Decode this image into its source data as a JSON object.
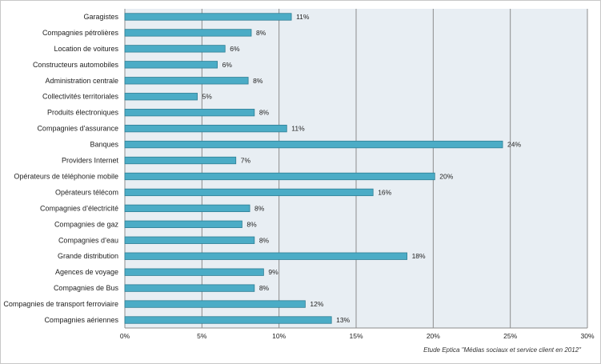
{
  "chart_data": {
    "type": "bar",
    "orientation": "horizontal",
    "categories": [
      "Garagistes",
      "Compagnies pétrolières",
      "Location de voitures",
      "Constructeurs automobiles",
      "Administration centrale",
      "Collectivités territoriales",
      "Produits électroniques",
      "Compagnies d’assurance",
      "Banques",
      "Providers Internet",
      "Opérateurs de téléphonie mobile",
      "Opérateurs télécom",
      "Compagnies d’électricité",
      "Compagnies de gaz",
      "Compagnies d’eau",
      "Grande distribution",
      "Agences de voyage",
      "Compagnies de Bus",
      "Compagnies de transport ferroviaire",
      "Compagnies aériennes"
    ],
    "values": [
      10.8,
      8.2,
      6.5,
      6.0,
      8.0,
      4.7,
      8.4,
      10.5,
      24.5,
      7.2,
      20.1,
      16.1,
      8.1,
      7.6,
      8.4,
      18.3,
      9.0,
      8.4,
      11.7,
      13.4
    ],
    "data_labels": [
      "11%",
      "8%",
      "6%",
      "6%",
      "8%",
      "5%",
      "8%",
      "11%",
      "24%",
      "7%",
      "20%",
      "16%",
      "8%",
      "8%",
      "8%",
      "18%",
      "9%",
      "8%",
      "12%",
      "13%"
    ],
    "xlim": [
      0,
      30
    ],
    "xticks": [
      0,
      5,
      10,
      15,
      20,
      25,
      30
    ],
    "xtick_labels": [
      "0%",
      "5%",
      "10%",
      "15%",
      "20%",
      "25%",
      "30%"
    ],
    "grid": true,
    "bar_color": "#4bacc6",
    "bar_edge_color": "#2e7f95",
    "plot_background": "#e8eef3",
    "gridline_color": "#8c8c8c",
    "source_note": "Etude Eptica \"Médias sociaux et service client en 2012\""
  }
}
